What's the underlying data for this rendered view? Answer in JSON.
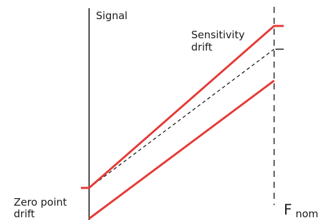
{
  "labels": {
    "signal": "Signal",
    "sensitivity_drift_line1": "Sensitivity",
    "sensitivity_drift_line2": "drift",
    "zero_point_drift_line1": "Zero point",
    "zero_point_drift_line2": "drift",
    "f_nom_base": "F",
    "f_nom_sub": "nom"
  },
  "colors": {
    "drift_line": "#e53935",
    "reference_line": "#1a1a1a",
    "axis": "#1a1a1a",
    "text": "#1a1a1a"
  }
}
